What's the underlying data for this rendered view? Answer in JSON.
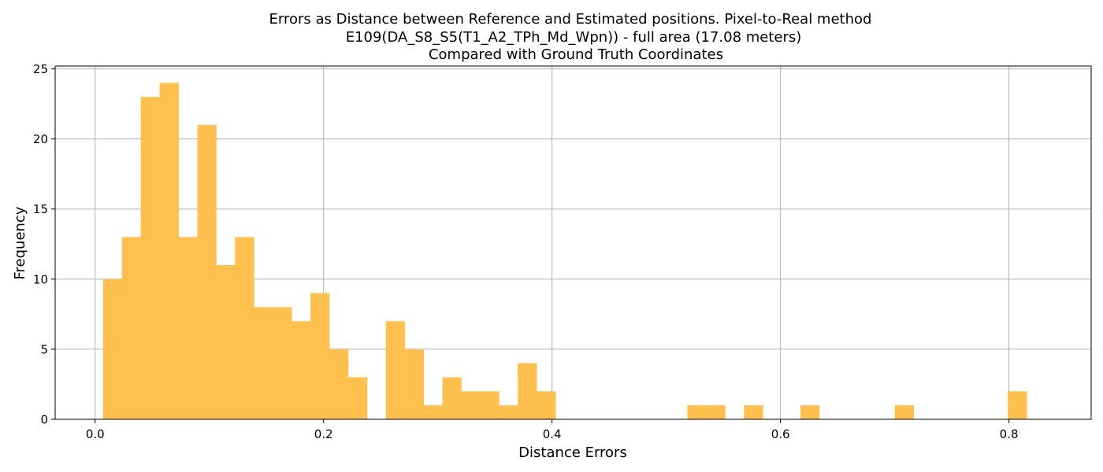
{
  "chart_data": {
    "type": "bar",
    "title_lines": [
      "Errors as Distance between Reference and Estimated positions. Pixel-to-Real method",
      "E109(DA_S8_S5(T1_A2_TPh_Md_Wpn)) - full area (17.08 meters)",
      "Compared with Ground Truth Coordinates"
    ],
    "xlabel": "Distance Errors",
    "ylabel": "Frequency",
    "xlim": [
      -0.035,
      0.872
    ],
    "ylim": [
      0,
      25.2
    ],
    "x_ticks": [
      {
        "value": 0.0,
        "label": "0.0"
      },
      {
        "value": 0.2,
        "label": "0.2"
      },
      {
        "value": 0.4,
        "label": "0.4"
      },
      {
        "value": 0.6,
        "label": "0.6"
      },
      {
        "value": 0.8,
        "label": "0.8"
      }
    ],
    "y_ticks": [
      {
        "value": 0,
        "label": "0"
      },
      {
        "value": 5,
        "label": "5"
      },
      {
        "value": 10,
        "label": "10"
      },
      {
        "value": 15,
        "label": "15"
      },
      {
        "value": 20,
        "label": "20"
      },
      {
        "value": 25,
        "label": "25"
      }
    ],
    "grid": true,
    "bar_color": "#FFC04D",
    "bin_start": 0.007,
    "bin_width": 0.0165,
    "counts": [
      10,
      13,
      23,
      24,
      13,
      21,
      11,
      13,
      8,
      8,
      7,
      9,
      5,
      3,
      0,
      7,
      5,
      1,
      3,
      2,
      2,
      1,
      4,
      2,
      0,
      0,
      0,
      0,
      0,
      0,
      0,
      1,
      1,
      0,
      1,
      0,
      0,
      1,
      0,
      0,
      0,
      0,
      1,
      0,
      0,
      0,
      0,
      0,
      2
    ]
  }
}
